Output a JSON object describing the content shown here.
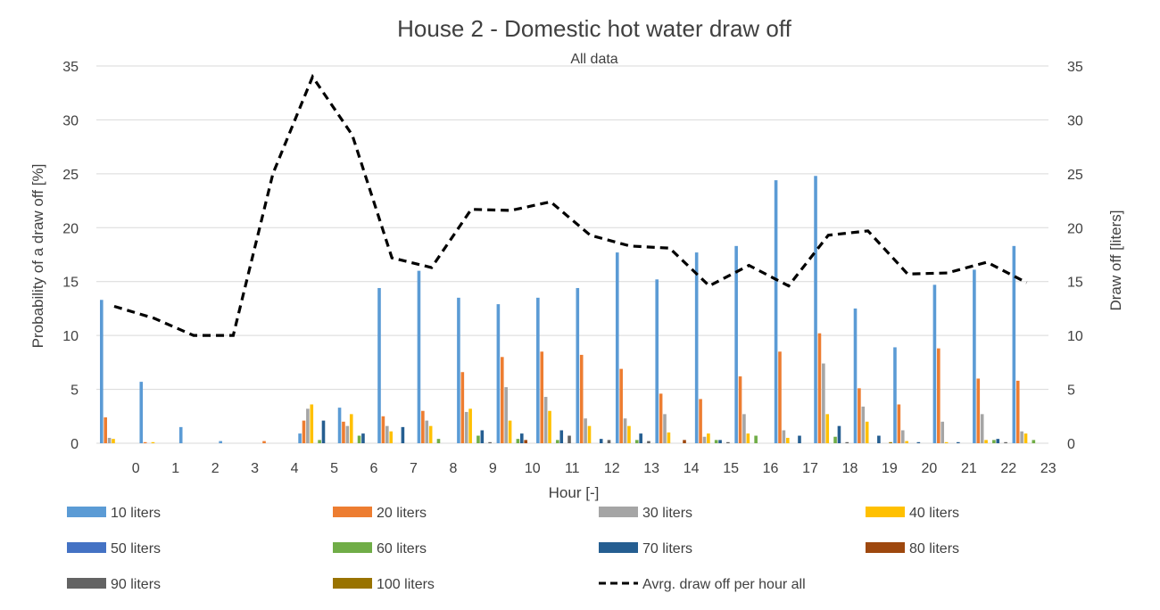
{
  "chart_data": {
    "type": "bar",
    "title": "House 2 - Domestic hot water draw off",
    "subtitle": "All data",
    "xlabel": "Hour [-]",
    "ylabel": "Probability of a draw off [%]",
    "y2label": "Draw off [liters]",
    "ylim": [
      0,
      35
    ],
    "y2lim": [
      0,
      35
    ],
    "yticks": [
      0,
      5,
      10,
      15,
      20,
      25,
      30,
      35
    ],
    "categories": [
      "0",
      "1",
      "2",
      "3",
      "4",
      "5",
      "6",
      "7",
      "8",
      "9",
      "10",
      "11",
      "12",
      "13",
      "14",
      "15",
      "16",
      "17",
      "18",
      "19",
      "20",
      "21",
      "22",
      "23"
    ],
    "series": [
      {
        "name": "10 liters",
        "color": "#5b9bd5",
        "values": [
          13.3,
          5.7,
          1.5,
          0.2,
          0,
          0.9,
          3.3,
          14.4,
          16.0,
          13.5,
          12.9,
          13.5,
          14.4,
          17.7,
          15.2,
          17.7,
          18.3,
          24.4,
          24.8,
          12.5,
          8.9,
          14.7,
          16.1,
          18.3
        ]
      },
      {
        "name": "20 liters",
        "color": "#ed7d31",
        "values": [
          2.4,
          0.1,
          0,
          0,
          0.2,
          2.1,
          2.0,
          2.5,
          3.0,
          6.6,
          8.0,
          8.5,
          8.2,
          6.9,
          4.6,
          4.1,
          6.2,
          8.5,
          10.2,
          5.1,
          3.6,
          8.8,
          6.0,
          5.8
        ]
      },
      {
        "name": "30 liters",
        "color": "#a5a5a5",
        "values": [
          0.5,
          0,
          0,
          0,
          0,
          3.2,
          1.6,
          1.6,
          2.1,
          2.9,
          5.2,
          4.3,
          2.3,
          2.3,
          2.7,
          0.6,
          2.7,
          1.2,
          7.4,
          3.4,
          1.2,
          2.0,
          2.7,
          1.1
        ]
      },
      {
        "name": "40 liters",
        "color": "#ffc000",
        "values": [
          0.4,
          0.1,
          0,
          0,
          0,
          3.6,
          2.7,
          1.1,
          1.6,
          3.2,
          2.1,
          3.0,
          1.6,
          1.6,
          1.0,
          0.9,
          0.9,
          0.5,
          2.7,
          2.0,
          0.2,
          0.1,
          0.3,
          0.9
        ]
      },
      {
        "name": "50 liters",
        "color": "#4472c4",
        "values": [
          0,
          0,
          0,
          0,
          0,
          0,
          0,
          0,
          0,
          0,
          0,
          0,
          0,
          0,
          0,
          0,
          0,
          0,
          0,
          0,
          0,
          0,
          0,
          0
        ]
      },
      {
        "name": "60 liters",
        "color": "#70ad47",
        "values": [
          0,
          0,
          0,
          0,
          0,
          0.3,
          0.7,
          0,
          0.4,
          0.7,
          0.4,
          0.3,
          0,
          0.3,
          0,
          0.3,
          0.7,
          0,
          0.6,
          0,
          0,
          0,
          0.3,
          0.3
        ]
      },
      {
        "name": "70 liters",
        "color": "#255e91",
        "values": [
          0,
          0,
          0,
          0,
          0,
          2.1,
          0.9,
          1.5,
          0,
          1.2,
          0.9,
          1.2,
          0.4,
          0.9,
          0,
          0.3,
          0,
          0.7,
          1.6,
          0.7,
          0.1,
          0.1,
          0.4,
          0
        ]
      },
      {
        "name": "80 liters",
        "color": "#9e480e",
        "values": [
          0,
          0,
          0,
          0,
          0,
          0,
          0,
          0,
          0,
          0,
          0.3,
          0,
          0,
          0,
          0.3,
          0,
          0,
          0,
          0,
          0,
          0,
          0,
          0,
          0
        ]
      },
      {
        "name": "90 liters",
        "color": "#636363",
        "values": [
          0,
          0,
          0,
          0,
          0,
          0,
          0,
          0,
          0,
          0.1,
          0,
          0.7,
          0.3,
          0.2,
          0,
          0.1,
          0,
          0,
          0.1,
          0,
          0,
          0,
          0.1,
          0
        ]
      },
      {
        "name": "100 liters",
        "color": "#997300",
        "values": [
          0,
          0,
          0,
          0,
          0,
          0,
          0,
          0,
          0,
          0,
          0,
          0,
          0,
          0,
          0,
          0,
          0,
          0,
          0,
          0.1,
          0,
          0,
          0,
          0
        ]
      }
    ],
    "line": {
      "name": "Avrg. draw off per hour all",
      "color": "#000000",
      "values": [
        12.7,
        11.6,
        10.0,
        10.0,
        25.0,
        34.0,
        28.6,
        17.2,
        16.3,
        21.7,
        21.6,
        22.4,
        19.3,
        18.3,
        18.1,
        14.6,
        16.5,
        14.6,
        19.3,
        19.7,
        15.7,
        15.8,
        16.8,
        14.9
      ]
    }
  }
}
